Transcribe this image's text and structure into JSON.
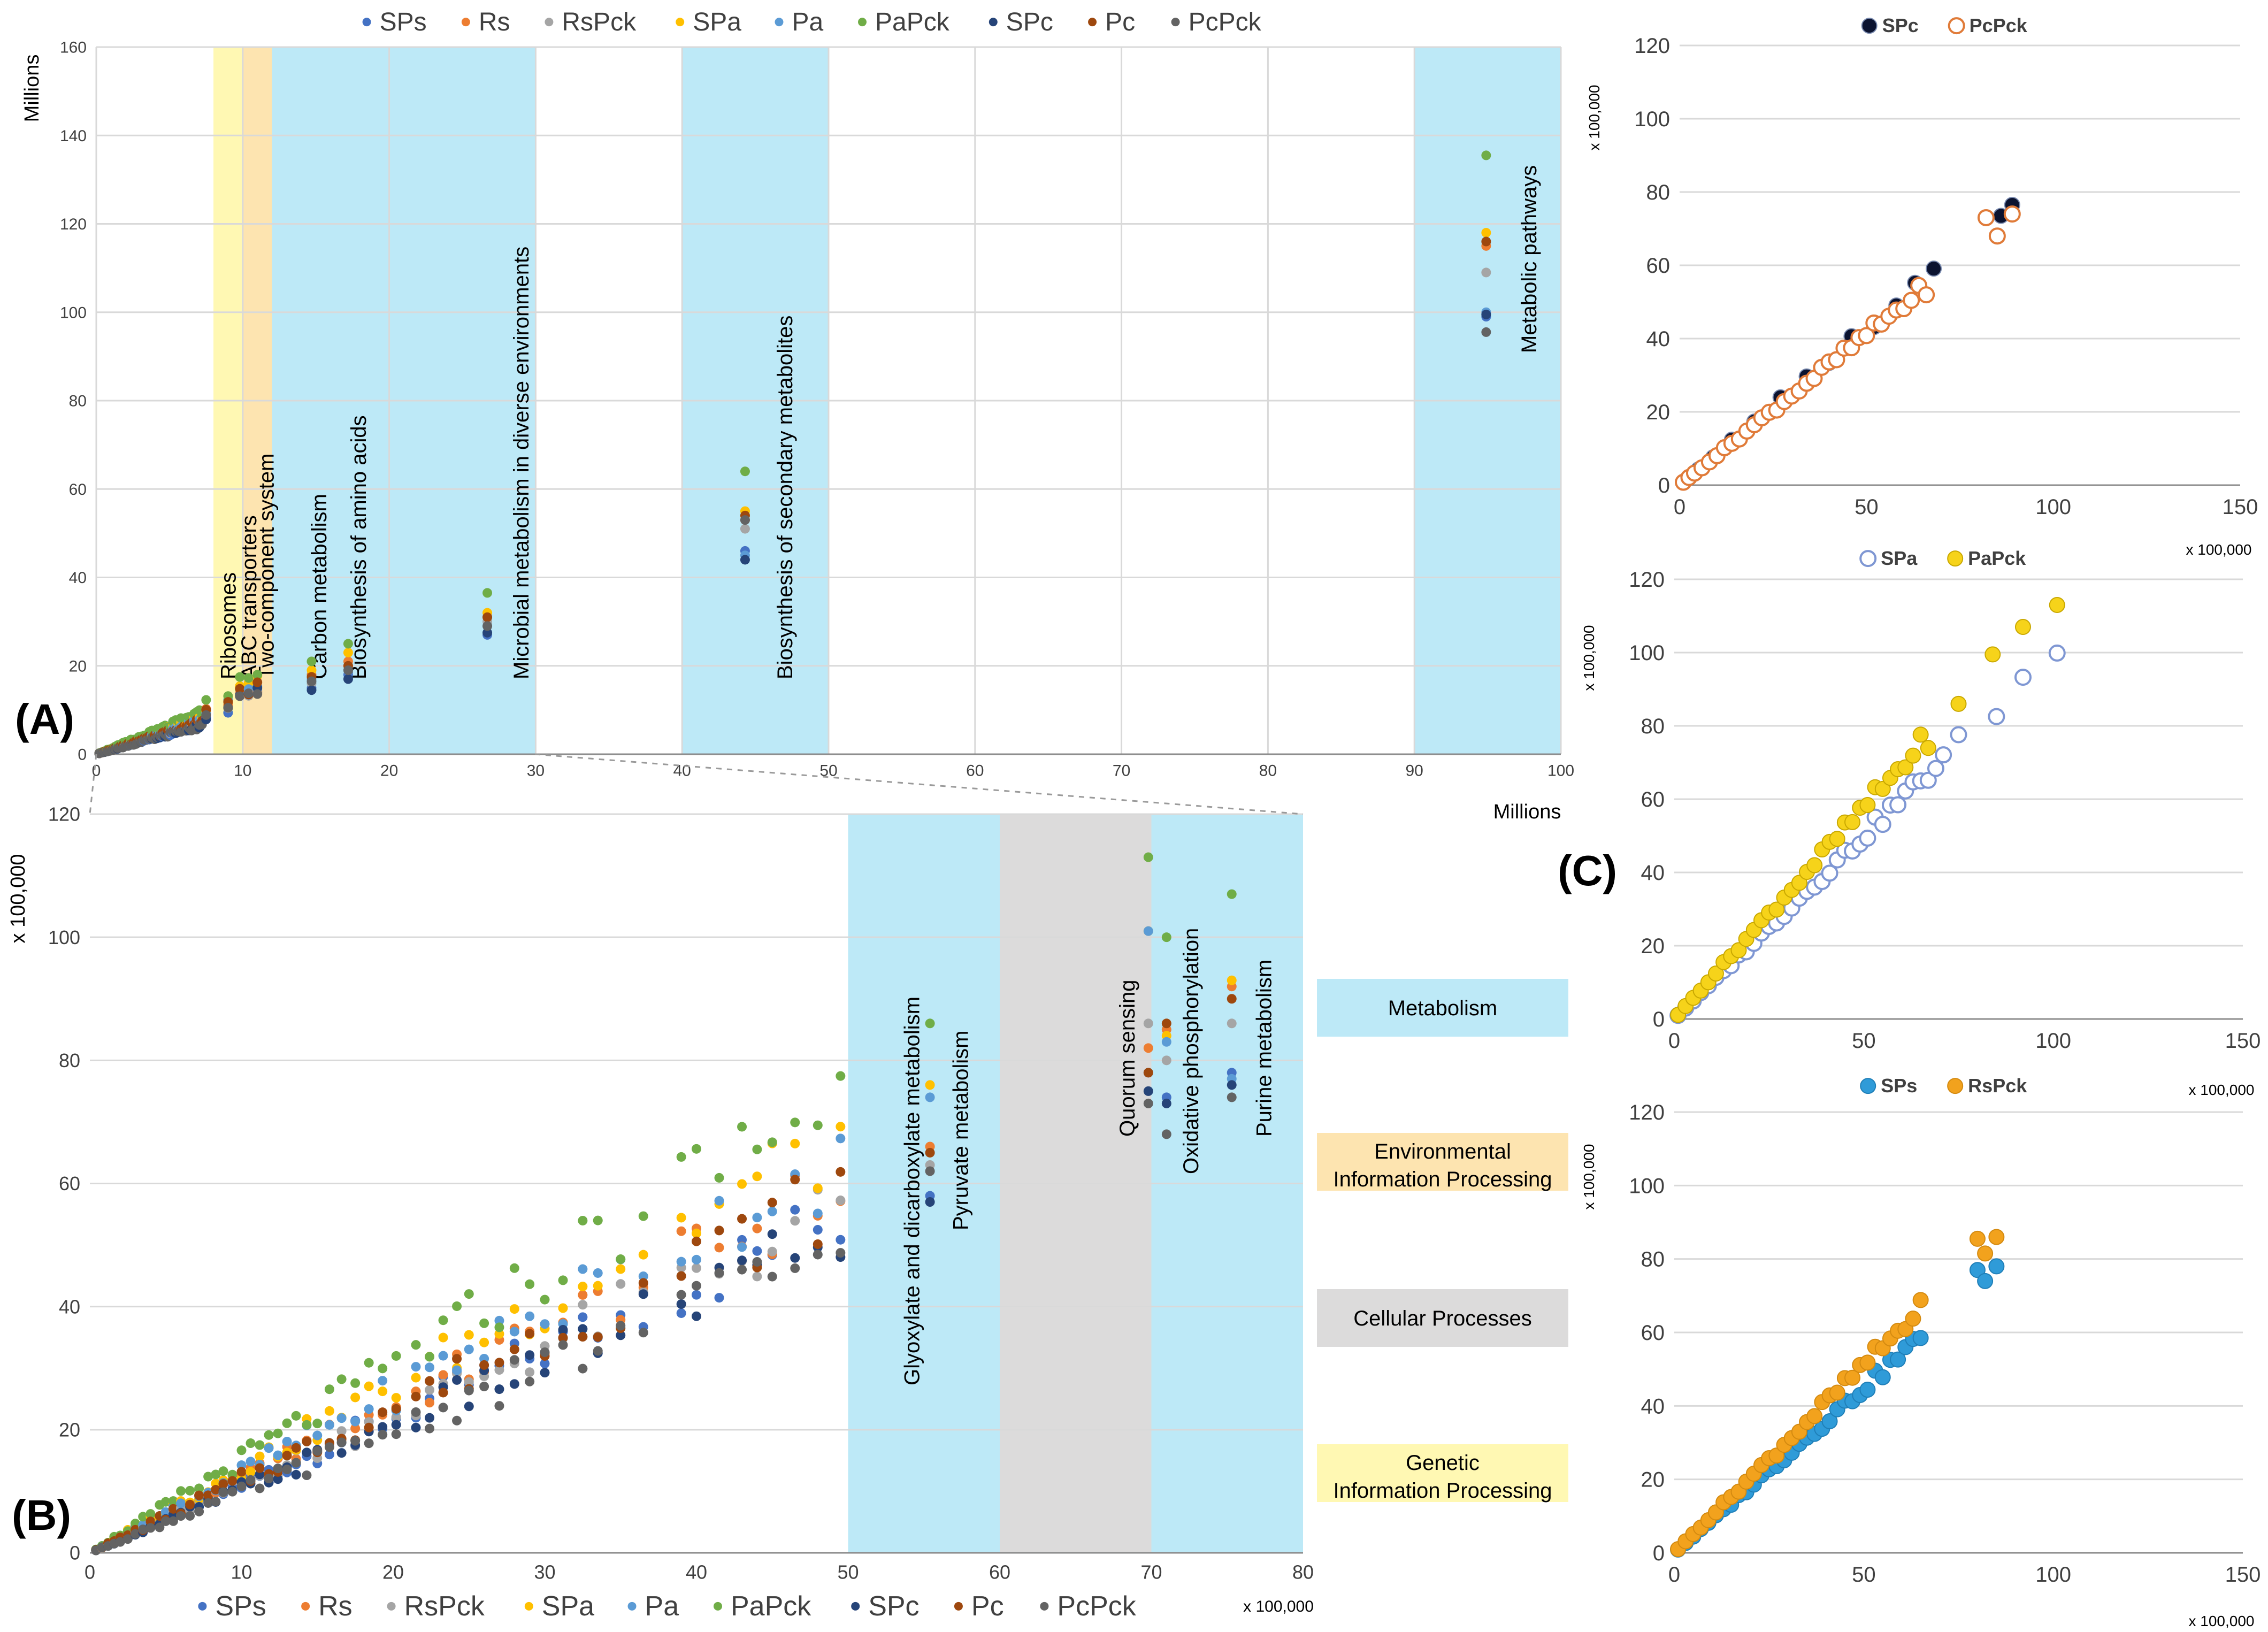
{
  "panel_labels": {
    "a": "(A)",
    "b": "(B)",
    "c": "(C)"
  },
  "colors": {
    "SPs": "#4472c4",
    "Rs": "#ed7d31",
    "RsPck": "#a5a5a5",
    "SPa": "#ffc000",
    "Pa": "#5b9bd5",
    "PaPck": "#70ad47",
    "SPc": "#264478",
    "Pc": "#9e480e",
    "PcPck": "#636363",
    "band_blue": "#bde9f7",
    "band_gray": "#dcdbdb",
    "band_yellow": "#fff8b3",
    "band_orange": "#fde4b0",
    "grid": "#d9d9d9",
    "axis": "#8c8c8c"
  },
  "category_legend": [
    {
      "label": "Metabolism",
      "color": "#bde9f7"
    },
    {
      "label_lines": [
        "Environmental",
        "Information Processing"
      ],
      "color": "#fde4b0"
    },
    {
      "label": "Cellular Processes",
      "color": "#dcdbdb"
    },
    {
      "label_lines": [
        "Genetic",
        "Information Processing"
      ],
      "color": "#fff8b3"
    }
  ],
  "chart_data": [
    {
      "id": "A",
      "type": "scatter",
      "title": "",
      "legend": [
        "SPs",
        "Rs",
        "RsPck",
        "SPa",
        "Pa",
        "PaPck",
        "SPc",
        "Pc",
        "PcPck"
      ],
      "xlabel": "Millions",
      "ylabel": "Millions",
      "xlim": [
        0,
        100
      ],
      "ylim": [
        0,
        160
      ],
      "xticks": [
        0,
        10,
        20,
        30,
        40,
        50,
        60,
        70,
        80,
        90,
        100
      ],
      "yticks": [
        0,
        20,
        40,
        60,
        80,
        100,
        120,
        140,
        160
      ],
      "grid": true,
      "bands": [
        {
          "x0": 8,
          "x1": 10,
          "category": "band_yellow"
        },
        {
          "x0": 10,
          "x1": 12,
          "category": "band_orange"
        },
        {
          "x0": 12,
          "x1": 30,
          "category": "band_blue"
        },
        {
          "x0": 40,
          "x1": 50,
          "category": "band_blue"
        },
        {
          "x0": 90,
          "x1": 100,
          "category": "band_blue"
        }
      ],
      "annotations": [
        {
          "text": "Ribosomes",
          "x": 9.0
        },
        {
          "text": "ABC transporters",
          "x": 10.4
        },
        {
          "text": "Two-component system",
          "x": 11.6
        },
        {
          "text": "Carbon metabolism",
          "x": 15.2
        },
        {
          "text": "Biosynthesis of amino acids",
          "x": 17.9
        },
        {
          "text": "Microbial metabolism in diverse environments",
          "x": 29.0
        },
        {
          "text": "Biosynthesis of secondary metabolites",
          "x": 47.0
        },
        {
          "text": "Metabolic pathways",
          "x": 97.8
        }
      ],
      "clusters": [
        {
          "x": 14.7,
          "values": {
            "SPs": 15,
            "Rs": 18,
            "RsPck": 16,
            "SPa": 19,
            "Pa": 17,
            "PaPck": 21,
            "SPc": 14.5,
            "Pc": 17.5,
            "PcPck": 16.5
          }
        },
        {
          "x": 17.2,
          "values": {
            "SPs": 18,
            "Rs": 21,
            "RsPck": 20,
            "SPa": 23,
            "Pa": 19,
            "PaPck": 25,
            "SPc": 17,
            "Pc": 20,
            "PcPck": 19
          }
        },
        {
          "x": 26.7,
          "values": {
            "SPs": 27,
            "Rs": 31,
            "RsPck": 30,
            "SPa": 32,
            "Pa": 29,
            "PaPck": 36.5,
            "SPc": 27.5,
            "Pc": 31,
            "PcPck": 29
          }
        },
        {
          "x": 44.3,
          "values": {
            "SPs": 46,
            "Rs": 53,
            "RsPck": 51,
            "SPa": 55,
            "Pa": 45,
            "PaPck": 64,
            "SPc": 44,
            "Pc": 54,
            "PcPck": 53
          }
        },
        {
          "x": 94.9,
          "values": {
            "SPs": 99,
            "Rs": 115,
            "RsPck": 109,
            "SPa": 118,
            "Pa": 100,
            "PaPck": 135.5,
            "SPc": 99.5,
            "Pc": 116,
            "PcPck": 95.5
          }
        }
      ]
    },
    {
      "id": "B",
      "type": "scatter",
      "title": "",
      "legend": [
        "SPs",
        "Rs",
        "RsPck",
        "SPa",
        "Pa",
        "PaPck",
        "SPc",
        "Pc",
        "PcPck"
      ],
      "xlabel": "x 100,000",
      "ylabel": "x 100,000",
      "xlim": [
        0,
        80
      ],
      "ylim": [
        0,
        120
      ],
      "xticks": [
        0,
        10,
        20,
        30,
        40,
        50,
        60,
        70,
        80
      ],
      "yticks": [
        0,
        20,
        40,
        60,
        80,
        100,
        120
      ],
      "grid": true,
      "bands": [
        {
          "x0": 50,
          "x1": 60,
          "category": "band_blue"
        },
        {
          "x0": 60,
          "x1": 70,
          "category": "band_gray"
        },
        {
          "x0": 70,
          "x1": 80,
          "category": "band_blue"
        }
      ],
      "annotations": [
        {
          "text": "Glyoxylate and dicarboxylate metabolism",
          "x": 54.2
        },
        {
          "text": "Pyruvate metabolism",
          "x": 57.4
        },
        {
          "text": "Quorum sensing",
          "x": 68.4
        },
        {
          "text": "Oxidative phosphorylation",
          "x": 72.6
        },
        {
          "text": "Purine metabolism",
          "x": 77.4
        }
      ],
      "series_slopes": {
        "SPs": 1.1,
        "Rs": 1.2,
        "RsPck": 1.12,
        "SPa": 1.36,
        "Pa": 1.3,
        "PaPck": 1.52,
        "SPc": 1.04,
        "Pc": 1.18,
        "PcPck": 1.0
      },
      "x_samples": [
        0.4,
        0.8,
        1.2,
        1.6,
        2.0,
        2.5,
        3.0,
        3.5,
        4.0,
        4.6,
        5.0,
        5.5,
        6.0,
        6.6,
        7.2,
        7.8,
        8.3,
        8.8,
        9.4,
        10.0,
        10.6,
        11.2,
        11.8,
        12.4,
        13.0,
        13.6,
        14.3,
        15.0,
        15.8,
        16.6,
        17.5,
        18.4,
        19.3,
        20.2,
        21.5,
        22.4,
        23.3,
        24.2,
        25.0,
        26.0,
        27.0,
        28.0,
        29.0,
        30.0,
        31.2,
        32.5,
        33.5,
        35.0,
        36.5,
        39.0,
        40.0,
        41.5,
        43.0,
        44.0,
        45.0,
        46.5,
        48.0,
        49.5
      ],
      "clusters": [
        {
          "x": 55.4,
          "values": {
            "SPs": 58,
            "Rs": 66,
            "RsPck": 63,
            "SPa": 76,
            "Pa": 74,
            "PaPck": 86,
            "SPc": 57,
            "Pc": 65,
            "PcPck": 62
          }
        },
        {
          "x": 69.8,
          "values": {
            "SPs": 78,
            "Rs": 82,
            "RsPck": 86,
            "SPa": 101,
            "Pa": 101,
            "PaPck": 113,
            "SPc": 75,
            "Pc": 78,
            "PcPck": 73
          }
        },
        {
          "x": 71.0,
          "values": {
            "SPs": 74,
            "Rs": 85,
            "RsPck": 80,
            "SPa": 84,
            "Pa": 83,
            "PaPck": 100,
            "SPc": 73,
            "Pc": 86,
            "PcPck": 68
          }
        },
        {
          "x": 75.3,
          "values": {
            "SPs": 78,
            "Rs": 92,
            "RsPck": 86,
            "SPa": 93,
            "Pa": 77,
            "PaPck": 107,
            "SPc": 76,
            "Pc": 90,
            "PcPck": 74
          }
        }
      ]
    },
    {
      "id": "C1",
      "type": "scatter",
      "legend": [
        "SPc",
        "PcPck"
      ],
      "marker_styles": {
        "SPc": "filled-black",
        "PcPck": "hollow-orange"
      },
      "xlabel": "x 100,000",
      "ylabel": "x 100,000",
      "xlim": [
        0,
        150
      ],
      "ylim": [
        0,
        120
      ],
      "xticks": [
        0,
        50,
        100,
        150
      ],
      "yticks": [
        0,
        20,
        40,
        60,
        80,
        100,
        120
      ],
      "grid": true,
      "series": [
        {
          "name": "SPc",
          "slope": 0.86,
          "x": [
            2,
            5,
            9,
            14,
            20,
            27,
            34,
            40,
            46,
            52,
            58,
            63,
            68
          ],
          "extra": [
            [
              86,
              73.5
            ],
            [
              89,
              76.5
            ]
          ]
        },
        {
          "name": "PcPck",
          "slope": 0.82,
          "x": [
            1,
            2.5,
            4,
            6,
            8,
            10,
            12,
            14,
            16,
            18,
            20,
            22,
            24,
            26,
            28,
            30,
            32,
            34,
            36,
            38,
            40,
            42,
            44,
            46,
            48,
            50,
            52,
            54,
            56,
            58,
            60,
            62,
            64,
            66
          ],
          "extra": [
            [
              82,
              73
            ],
            [
              85,
              68
            ],
            [
              89,
              74
            ]
          ]
        }
      ]
    },
    {
      "id": "C2",
      "type": "scatter",
      "legend": [
        "SPa",
        "PaPck"
      ],
      "marker_styles": {
        "SPa": "hollow-blue",
        "PaPck": "filled-yellow"
      },
      "xlabel": "x 100,000",
      "ylabel": "x 100,000",
      "xlim": [
        0,
        150
      ],
      "ylim": [
        0,
        120
      ],
      "xticks": [
        0,
        50,
        100,
        150
      ],
      "yticks": [
        0,
        20,
        40,
        60,
        80,
        100,
        120
      ],
      "grid": true,
      "series": [
        {
          "name": "SPa",
          "slope": 1.0,
          "x": [
            1,
            3,
            5,
            7,
            9,
            11,
            13,
            15,
            17,
            19,
            21,
            23,
            25,
            27,
            29,
            31,
            33,
            35,
            37,
            39,
            41,
            43,
            45,
            47,
            49,
            51,
            53,
            55,
            57,
            59,
            61,
            63,
            65,
            67,
            69,
            71,
            75,
            85,
            92,
            101
          ],
          "extra": []
        },
        {
          "name": "PaPck",
          "slope": 1.15,
          "x": [
            1,
            3,
            5,
            7,
            9,
            11,
            13,
            15,
            17,
            19,
            21,
            23,
            25,
            27,
            29,
            31,
            33,
            35,
            37,
            39,
            41,
            43,
            45,
            47,
            49,
            51,
            53,
            55,
            57,
            59,
            61,
            63,
            65,
            67
          ],
          "extra": [
            [
              75,
              86
            ],
            [
              84,
              99.5
            ],
            [
              92,
              107
            ],
            [
              101,
              113
            ]
          ]
        }
      ]
    },
    {
      "id": "C3",
      "type": "scatter",
      "legend": [
        "SPs",
        "RsPck"
      ],
      "marker_styles": {
        "SPs": "filled-blue",
        "RsPck": "filled-orange"
      },
      "xlabel": "x 100,000",
      "ylabel": "x 100,000",
      "xlim": [
        0,
        150
      ],
      "ylim": [
        0,
        120
      ],
      "xticks": [
        0,
        50,
        100,
        150
      ],
      "yticks": [
        0,
        20,
        40,
        60,
        80,
        100,
        120
      ],
      "grid": true,
      "series": [
        {
          "name": "SPs",
          "slope": 0.9,
          "x": [
            1,
            3,
            5,
            7,
            9,
            11,
            13,
            15,
            17,
            19,
            21,
            23,
            25,
            27,
            29,
            31,
            33,
            35,
            37,
            39,
            41,
            43,
            45,
            47,
            49,
            51,
            53,
            55,
            57,
            59,
            61,
            63,
            65
          ],
          "extra": [
            [
              80,
              77
            ],
            [
              82,
              74
            ],
            [
              85,
              78
            ]
          ]
        },
        {
          "name": "RsPck",
          "slope": 1.02,
          "x": [
            1,
            3,
            5,
            7,
            9,
            11,
            13,
            15,
            17,
            19,
            21,
            23,
            25,
            27,
            29,
            31,
            33,
            35,
            37,
            39,
            41,
            43,
            45,
            47,
            49,
            51,
            53,
            55,
            57,
            59,
            61,
            63,
            65
          ],
          "extra": [
            [
              80,
              85.5
            ],
            [
              82,
              81.5
            ],
            [
              85,
              86
            ]
          ]
        }
      ]
    }
  ]
}
